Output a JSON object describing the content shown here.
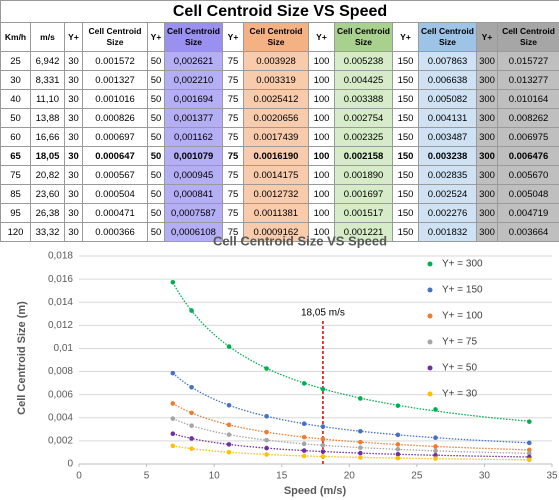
{
  "table": {
    "title": "Cell Centroid Size VS Speed",
    "headers": [
      "Km/h",
      "m/s",
      "Y+",
      "Cell Centroid Size",
      "Y+",
      "Cell Centroid Size",
      "Y+",
      "Cell Centroid Size",
      "Y+",
      "Cell Centroid Size",
      "Y+",
      "Cell Centroid Size",
      "Y+",
      "Cell Centroid Size"
    ],
    "rows": [
      [
        "25",
        "6,942",
        "30",
        "0.001572",
        "50",
        "0,002621",
        "75",
        "0.003928",
        "100",
        "0.005238",
        "150",
        "0.007863",
        "300",
        "0.015727"
      ],
      [
        "30",
        "8,331",
        "30",
        "0.001327",
        "50",
        "0,002210",
        "75",
        "0.003319",
        "100",
        "0.004425",
        "150",
        "0.006638",
        "300",
        "0.013277"
      ],
      [
        "40",
        "11,10",
        "30",
        "0.001016",
        "50",
        "0,001694",
        "75",
        "0.0025412",
        "100",
        "0.003388",
        "150",
        "0.005082",
        "300",
        "0.010164"
      ],
      [
        "50",
        "13,88",
        "30",
        "0.000826",
        "50",
        "0,001377",
        "75",
        "0.0020656",
        "100",
        "0.002754",
        "150",
        "0.004131",
        "300",
        "0.008262"
      ],
      [
        "60",
        "16,66",
        "30",
        "0.000697",
        "50",
        "0,001162",
        "75",
        "0.0017439",
        "100",
        "0.002325",
        "150",
        "0.003487",
        "300",
        "0.006975"
      ],
      [
        "65",
        "18,05",
        "30",
        "0.000647",
        "50",
        "0,001079",
        "75",
        "0.0016190",
        "100",
        "0.002158",
        "150",
        "0.003238",
        "300",
        "0.006476"
      ],
      [
        "75",
        "20,82",
        "30",
        "0.000567",
        "50",
        "0,000945",
        "75",
        "0.0014175",
        "100",
        "0.001890",
        "150",
        "0.002835",
        "300",
        "0.005670"
      ],
      [
        "85",
        "23,60",
        "30",
        "0.000504",
        "50",
        "0,000841",
        "75",
        "0.0012732",
        "100",
        "0.001697",
        "150",
        "0.002524",
        "300",
        "0.005048"
      ],
      [
        "95",
        "26,38",
        "30",
        "0.000471",
        "50",
        "0,0007587",
        "75",
        "0.0011381",
        "100",
        "0.001517",
        "150",
        "0.002276",
        "300",
        "0.004719"
      ],
      [
        "120",
        "33,32",
        "30",
        "0.000366",
        "50",
        "0,0006108",
        "75",
        "0.0009162",
        "100",
        "0.001221",
        "150",
        "0.001832",
        "300",
        "0.003664"
      ]
    ]
  },
  "chart_data": {
    "type": "scatter",
    "title": "Cell Centroid Size   VS   Speed",
    "x_label": "Speed (m/s)",
    "y_label": "Cell Centroid Size (m)",
    "x": [
      6.942,
      8.331,
      11.1,
      13.88,
      16.66,
      18.05,
      20.82,
      23.6,
      26.38,
      33.32
    ],
    "series": [
      {
        "name": "Y+ = 300",
        "color": "#00b050",
        "values": [
          0.015727,
          0.013277,
          0.010164,
          0.008262,
          0.006975,
          0.006476,
          0.00567,
          0.005048,
          0.004719,
          0.003664
        ]
      },
      {
        "name": "Y+ = 150",
        "color": "#4472c4",
        "values": [
          0.007863,
          0.006638,
          0.005082,
          0.004131,
          0.003487,
          0.003238,
          0.002835,
          0.002524,
          0.002276,
          0.001832
        ]
      },
      {
        "name": "Y+ = 100",
        "color": "#ed7d31",
        "values": [
          0.005238,
          0.004425,
          0.003388,
          0.002754,
          0.002325,
          0.002158,
          0.00189,
          0.001697,
          0.001517,
          0.001221
        ]
      },
      {
        "name": "Y+ = 75",
        "color": "#a5a5a5",
        "values": [
          0.003928,
          0.003319,
          0.0025412,
          0.0020656,
          0.0017439,
          0.001619,
          0.0014175,
          0.0012732,
          0.0011381,
          0.0009162
        ]
      },
      {
        "name": "Y+ = 50",
        "color": "#7030a0",
        "values": [
          0.002621,
          0.00221,
          0.001694,
          0.001377,
          0.001162,
          0.001079,
          0.000945,
          0.000841,
          0.0007587,
          0.0006108
        ]
      },
      {
        "name": "Y+ = 30",
        "color": "#ffc000",
        "values": [
          0.001572,
          0.001327,
          0.001016,
          0.000826,
          0.000697,
          0.000647,
          0.000567,
          0.000504,
          0.000471,
          0.000366
        ]
      }
    ],
    "annotation": {
      "text": "18,05 m/s",
      "x": 18.05,
      "color": "#e00000"
    },
    "xlim": [
      0,
      35
    ],
    "xticks": [
      0,
      5,
      10,
      15,
      20,
      25,
      30,
      35
    ],
    "ylim": [
      0,
      0.018
    ],
    "yticks": [
      0,
      {
        "value": 0.002,
        "label": "0,002"
      },
      {
        "value": 0.004,
        "label": "0,004"
      },
      {
        "value": 0.006,
        "label": "0,006"
      },
      {
        "value": 0.008,
        "label": "0,008"
      },
      {
        "value": 0.01,
        "label": "0,01"
      },
      {
        "value": 0.012,
        "label": "0,012"
      },
      {
        "value": 0.014,
        "label": "0,014"
      },
      {
        "value": 0.016,
        "label": "0,016"
      },
      {
        "value": 0.018,
        "label": "0,018"
      }
    ],
    "grid": true,
    "legend": "right",
    "trendline": "power"
  }
}
